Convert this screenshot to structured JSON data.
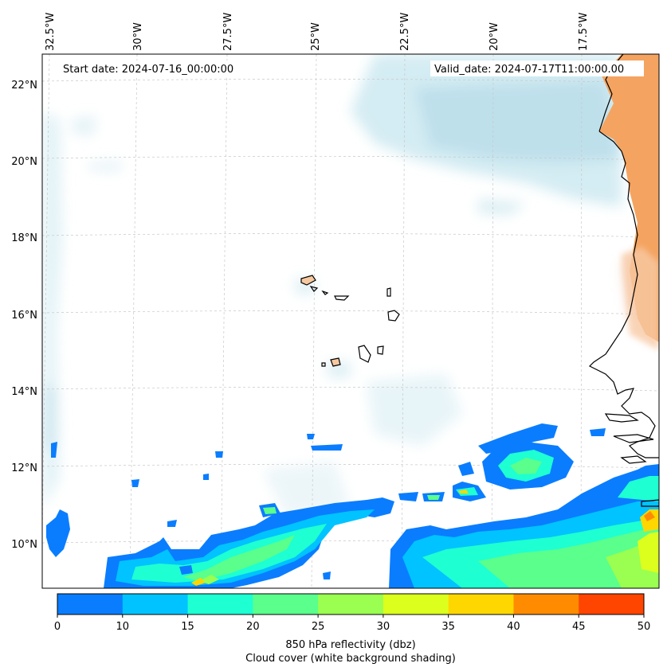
{
  "map": {
    "start_date": "Start date: 2024-07-16_00:00:00",
    "valid_date": "Valid_date: 2024-07-17T11:00:00.00",
    "lon_labels": [
      "32.5°W",
      "30°W",
      "27.5°W",
      "25°W",
      "22.5°W",
      "20°W",
      "17.5°W"
    ],
    "lat_labels": [
      "22°N",
      "20°N",
      "18°N",
      "16°N",
      "14°N",
      "12°N",
      "10°N"
    ],
    "lat_range": [
      8.9,
      22.8
    ],
    "lon_range": [
      -32.6,
      -15.2
    ]
  },
  "colorbar": {
    "label_line1": "850 hPa reflectivity (dbz)",
    "label_line2": "Cloud cover (white background shading)",
    "ticks": [
      "0",
      "10",
      "15",
      "20",
      "25",
      "30",
      "35",
      "40",
      "45",
      "50"
    ],
    "colors": [
      "#0a7dff",
      "#00c3ff",
      "#1effd2",
      "#5aff8c",
      "#9aff50",
      "#dcff1e",
      "#ffd700",
      "#ff8c00",
      "#ff4500"
    ]
  },
  "legend_colors": {
    "cloud": "#a9d6e5",
    "land_dust": "#f4a460",
    "island_fill": "#f5c8a0",
    "coast": "#000000"
  }
}
